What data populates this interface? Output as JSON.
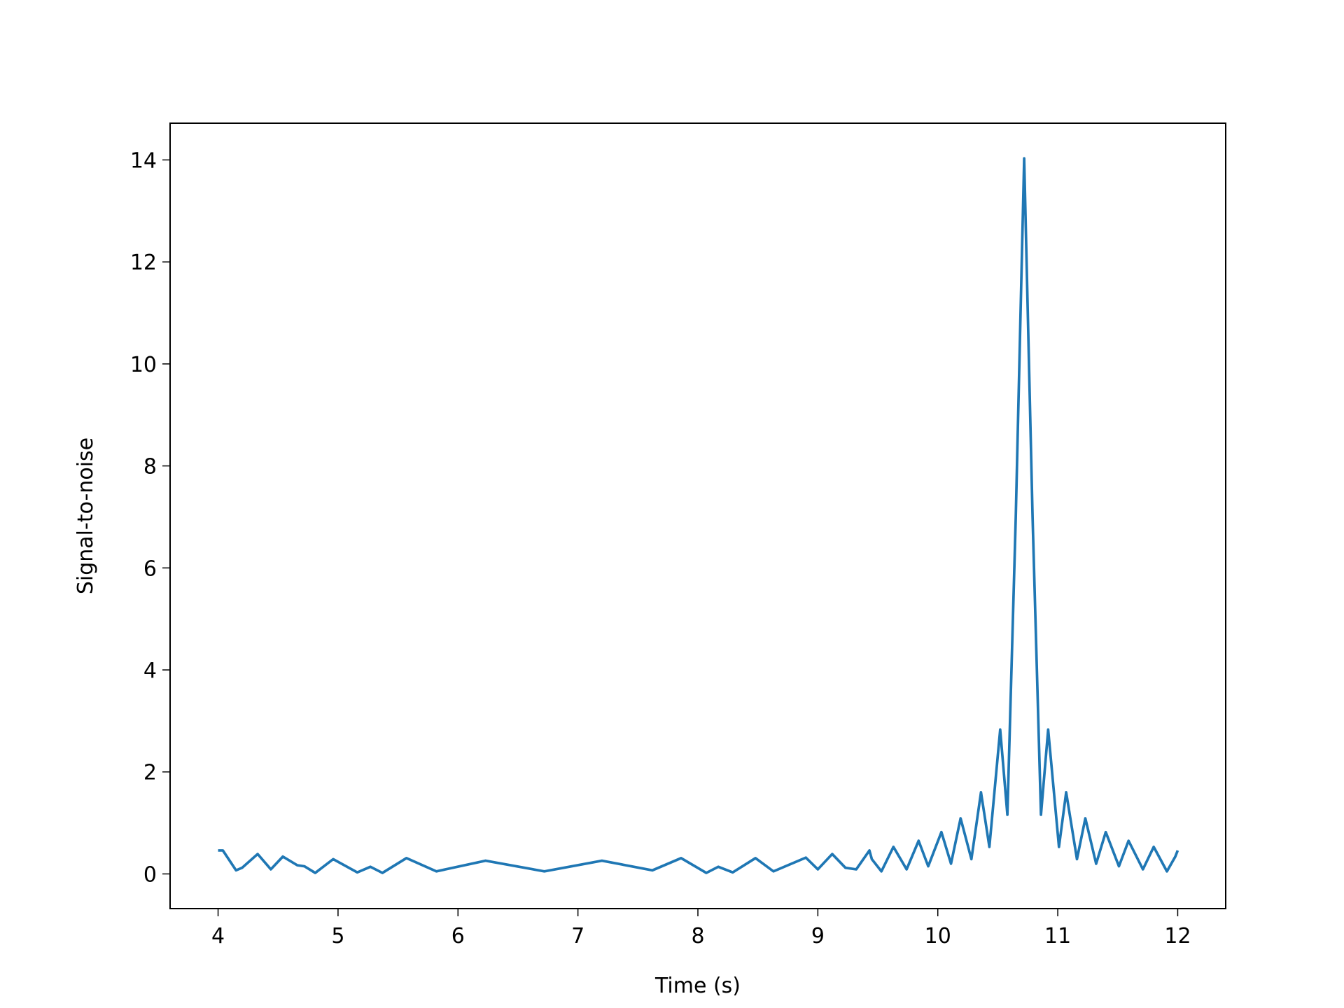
{
  "chart_data": {
    "type": "line",
    "xlabel": "Time (s)",
    "ylabel": "Signal-to-noise",
    "xlim": [
      3.6,
      12.4
    ],
    "ylim": [
      -0.68,
      14.72
    ],
    "xticks": [
      4,
      5,
      6,
      7,
      8,
      9,
      10,
      11,
      12
    ],
    "yticks": [
      0,
      2,
      4,
      6,
      8,
      10,
      12,
      14
    ],
    "series": [
      {
        "color": "#1f77b4",
        "x": [
          4.0,
          4.04,
          4.15,
          4.2,
          4.33,
          4.44,
          4.54,
          4.66,
          4.72,
          4.81,
          4.96,
          5.16,
          5.27,
          5.37,
          5.57,
          5.82,
          6.23,
          6.72,
          7.2,
          7.62,
          7.86,
          8.07,
          8.17,
          8.29,
          8.48,
          8.63,
          8.75,
          8.9,
          9.0,
          9.12,
          9.23,
          9.32,
          9.43,
          9.45,
          9.53,
          9.63,
          9.74,
          9.84,
          9.92,
          10.03,
          10.11,
          10.19,
          10.28,
          10.36,
          10.43,
          10.52,
          10.58,
          10.65,
          10.72,
          10.79,
          10.86,
          10.92,
          11.01,
          11.07,
          11.16,
          11.23,
          11.32,
          11.4,
          11.51,
          11.59,
          11.71,
          11.8,
          11.91,
          11.98,
          12.0
        ],
        "values": [
          0.46,
          0.46,
          0.07,
          0.12,
          0.39,
          0.09,
          0.34,
          0.17,
          0.15,
          0.02,
          0.29,
          0.03,
          0.14,
          0.02,
          0.31,
          0.05,
          0.26,
          0.05,
          0.26,
          0.07,
          0.31,
          0.02,
          0.14,
          0.03,
          0.31,
          0.05,
          0.17,
          0.32,
          0.09,
          0.39,
          0.12,
          0.09,
          0.46,
          0.29,
          0.05,
          0.53,
          0.09,
          0.65,
          0.15,
          0.82,
          0.2,
          1.09,
          0.29,
          1.6,
          0.53,
          2.83,
          1.16,
          7.0,
          14.03,
          7.0,
          1.16,
          2.83,
          0.53,
          1.6,
          0.29,
          1.09,
          0.2,
          0.82,
          0.15,
          0.65,
          0.09,
          0.53,
          0.05,
          0.34,
          0.46
        ]
      }
    ]
  }
}
